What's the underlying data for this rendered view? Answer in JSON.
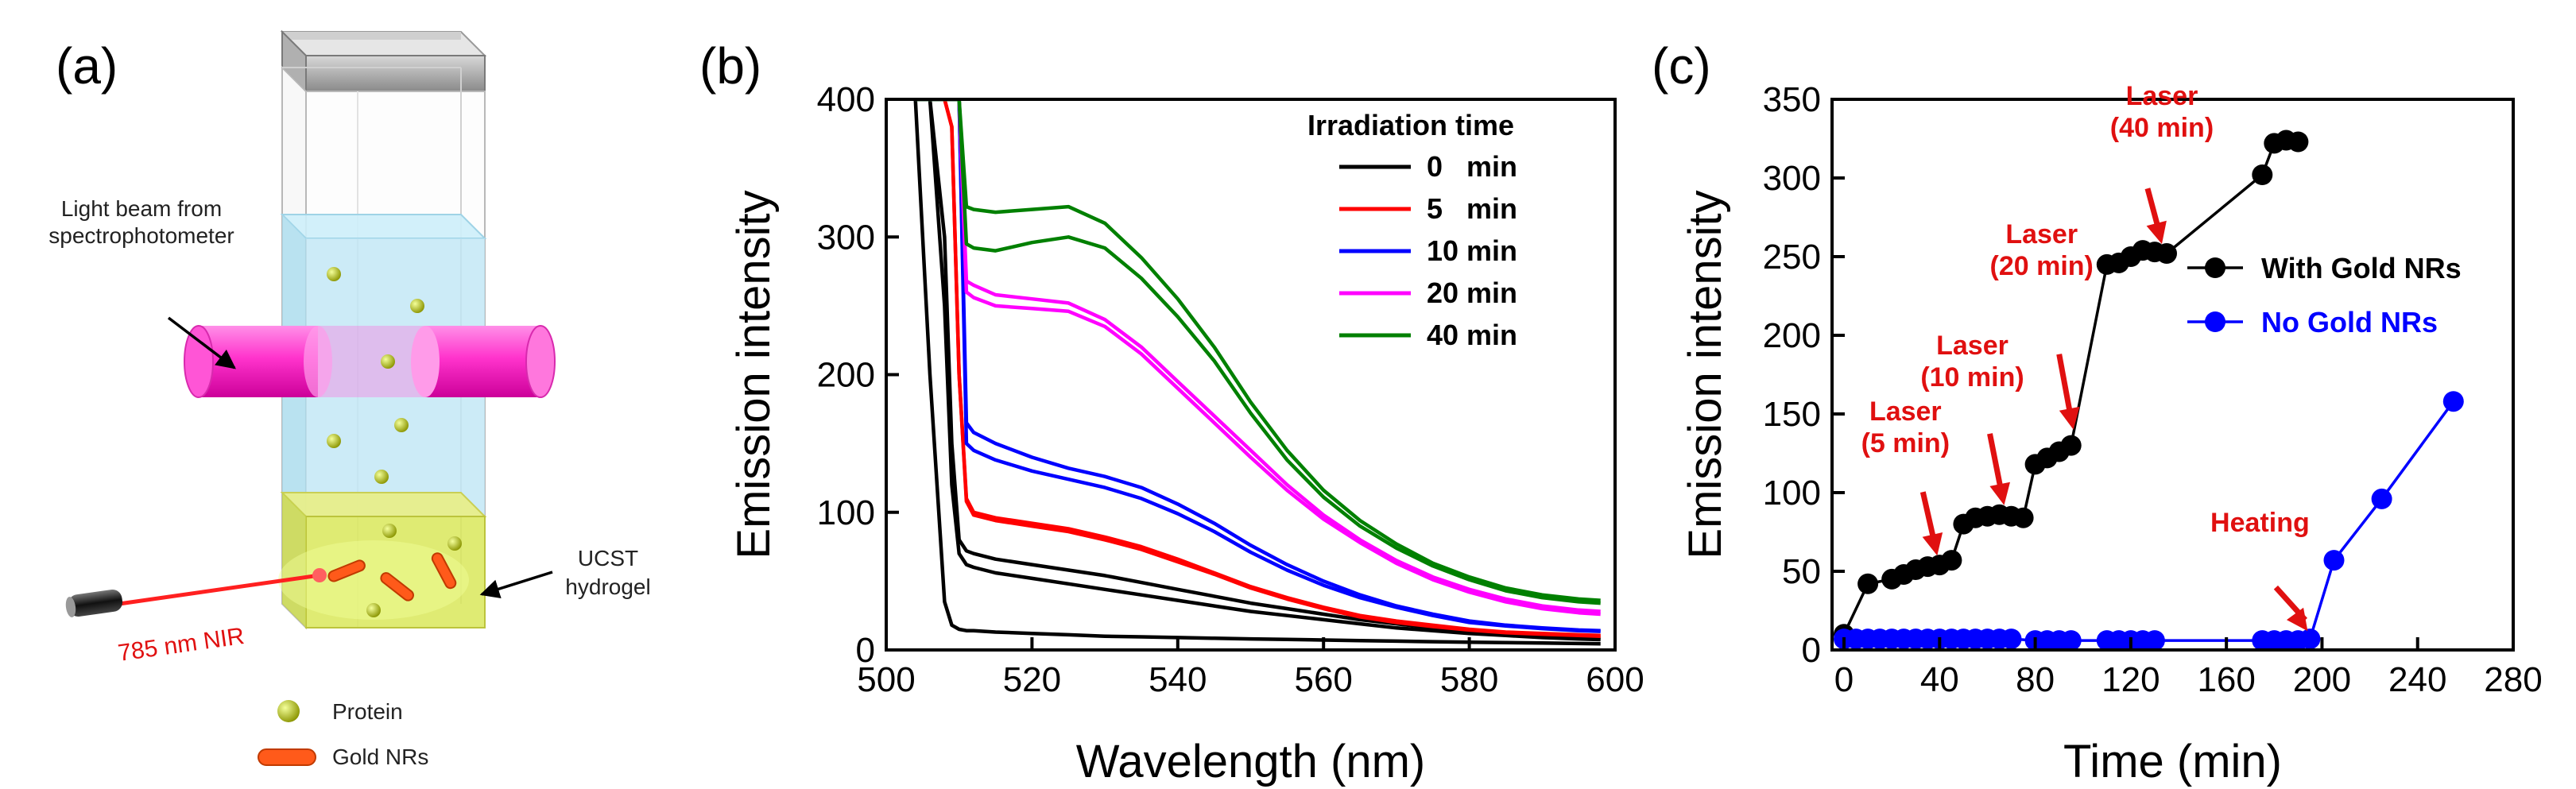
{
  "panels": {
    "a": {
      "label": "(a)",
      "light_beam_label_1": "Light beam from",
      "light_beam_label_2": "spectrophotometer",
      "laser_label": "785 nm NIR",
      "gel_label_1": "UCST",
      "gel_label_2": "hydrogel",
      "legend_protein": "Protein",
      "legend_gold": "Gold NRs",
      "colors": {
        "beam": "#ff33cc",
        "liquid": "#bfe6f5",
        "gel": "#d9e85a",
        "laser": "#ff2020",
        "protein": "#b8c400",
        "gold": "#ff5a1a"
      }
    },
    "b": {
      "label": "(b)"
    },
    "c": {
      "label": "(c)"
    }
  },
  "chart_data": [
    {
      "type": "line",
      "panel": "b",
      "title": "",
      "xlabel": "Wavelength (nm)",
      "ylabel": "Emission intensity",
      "xlim": [
        500,
        600
      ],
      "ylim": [
        0,
        400
      ],
      "xticks": [
        500,
        520,
        540,
        560,
        580,
        600
      ],
      "yticks": [
        0,
        100,
        200,
        300,
        400
      ],
      "legend_title": "Irradiation time",
      "legend_position": "top-right",
      "x": [
        504,
        506,
        508,
        509,
        510,
        511,
        512,
        515,
        520,
        525,
        530,
        535,
        540,
        545,
        550,
        555,
        560,
        565,
        570,
        575,
        580,
        585,
        590,
        595,
        598
      ],
      "series": [
        {
          "name": "0   min",
          "color": "#000000",
          "values": [
            400,
            200,
            35,
            18,
            15,
            14,
            14,
            13,
            12,
            11,
            10,
            9.5,
            9,
            8.5,
            8,
            7.6,
            7.2,
            6.8,
            6.4,
            6,
            5.6,
            5.3,
            5,
            4.7,
            4.5
          ]
        },
        {
          "name": "0   min",
          "color": "#000000",
          "values": [
            400,
            400,
            250,
            120,
            70,
            62,
            60,
            56,
            52,
            48,
            44,
            40,
            36,
            32,
            28,
            25,
            22,
            19,
            16,
            14,
            12,
            10.5,
            9,
            8,
            7.5
          ]
        },
        {
          "name": "0   min",
          "color": "#000000",
          "values": [
            400,
            400,
            300,
            150,
            80,
            72,
            70,
            66,
            62,
            58,
            54,
            49,
            44,
            39,
            34,
            30,
            26,
            22,
            19,
            16,
            13.5,
            11.5,
            10,
            9,
            8.5
          ]
        },
        {
          "name": "5   min",
          "color": "#ff0000",
          "values": [
            400,
            400,
            400,
            380,
            200,
            110,
            100,
            96,
            92,
            88,
            82,
            75,
            66,
            56,
            46,
            38,
            31,
            25,
            21,
            18,
            15,
            13,
            12,
            11,
            10.5
          ]
        },
        {
          "name": "5   min",
          "color": "#ff0000",
          "values": [
            400,
            400,
            400,
            380,
            200,
            108,
            98,
            94,
            90,
            86,
            80,
            73,
            64,
            55,
            45,
            37,
            30,
            24,
            20,
            17,
            14.5,
            12.5,
            11.5,
            10.5,
            10
          ]
        },
        {
          "name": "10 min",
          "color": "#0000ff",
          "values": [
            400,
            400,
            400,
            400,
            400,
            165,
            158,
            150,
            140,
            132,
            126,
            118,
            106,
            92,
            76,
            62,
            50,
            40,
            32,
            26,
            21,
            18,
            16,
            14.5,
            14
          ]
        },
        {
          "name": "10 min",
          "color": "#0000ff",
          "values": [
            400,
            400,
            400,
            400,
            400,
            150,
            145,
            138,
            130,
            124,
            118,
            110,
            99,
            86,
            71,
            58,
            47,
            38,
            31,
            25,
            20,
            17.5,
            15.5,
            14,
            13.5
          ]
        },
        {
          "name": "20 min",
          "color": "#ff00ff",
          "values": [
            400,
            400,
            400,
            400,
            400,
            268,
            265,
            258,
            255,
            252,
            240,
            220,
            195,
            170,
            145,
            120,
            98,
            80,
            65,
            53,
            44,
            37,
            32,
            29,
            28
          ]
        },
        {
          "name": "20 min",
          "color": "#ff00ff",
          "values": [
            400,
            400,
            400,
            400,
            400,
            260,
            256,
            250,
            248,
            246,
            235,
            215,
            190,
            165,
            140,
            116,
            95,
            78,
            63,
            51,
            42,
            35,
            30,
            27,
            26
          ]
        },
        {
          "name": "40 min",
          "color": "#008000",
          "values": [
            400,
            400,
            400,
            400,
            400,
            322,
            320,
            318,
            320,
            322,
            310,
            285,
            255,
            220,
            180,
            145,
            116,
            94,
            77,
            63,
            53,
            45,
            40,
            37,
            36
          ]
        },
        {
          "name": "40 min",
          "color": "#008000",
          "values": [
            400,
            400,
            400,
            400,
            400,
            295,
            292,
            290,
            296,
            300,
            292,
            270,
            242,
            210,
            172,
            138,
            111,
            90,
            74,
            61,
            51,
            43,
            38,
            35,
            34
          ]
        }
      ],
      "legend": [
        {
          "label": "0   min",
          "color": "#000000"
        },
        {
          "label": "5   min",
          "color": "#ff0000"
        },
        {
          "label": "10 min",
          "color": "#0000ff"
        },
        {
          "label": "20 min",
          "color": "#ff00ff"
        },
        {
          "label": "40 min",
          "color": "#008000"
        }
      ]
    },
    {
      "type": "line",
      "panel": "c",
      "title": "",
      "xlabel": "Time (min)",
      "ylabel": "Emission intensity",
      "xlim": [
        -5,
        280
      ],
      "ylim": [
        0,
        350
      ],
      "xticks": [
        0,
        40,
        80,
        120,
        160,
        200,
        240,
        280
      ],
      "yticks": [
        0,
        50,
        100,
        150,
        200,
        250,
        300,
        350
      ],
      "legend_position": "right",
      "series": [
        {
          "name": "With Gold NRs",
          "color": "#000000",
          "x": [
            0,
            10,
            20,
            25,
            30,
            35,
            40,
            45,
            50,
            55,
            60,
            65,
            70,
            75,
            80,
            85,
            90,
            95,
            110,
            115,
            120,
            125,
            130,
            135,
            175,
            180,
            185,
            190
          ],
          "y": [
            10,
            42,
            45,
            48,
            51,
            53,
            54,
            57,
            80,
            84,
            85,
            86,
            85,
            84,
            118,
            122,
            126,
            130,
            245,
            246,
            250,
            254,
            253,
            252,
            302,
            322,
            324,
            323
          ]
        },
        {
          "name": "No Gold NRs",
          "color": "#0000ff",
          "x": [
            0,
            5,
            10,
            15,
            20,
            25,
            30,
            35,
            40,
            45,
            50,
            55,
            60,
            65,
            70,
            80,
            85,
            90,
            95,
            110,
            115,
            120,
            125,
            130,
            175,
            180,
            185,
            190,
            195,
            205,
            225,
            255
          ],
          "y": [
            7,
            7,
            7,
            7,
            7,
            7,
            7,
            7,
            7,
            7,
            7,
            7,
            7,
            7,
            7,
            6,
            6,
            6,
            6,
            6,
            6,
            6,
            6,
            6,
            6,
            6,
            6,
            6,
            7,
            57,
            96,
            158
          ]
        }
      ],
      "annotations": [
        {
          "text": "Laser (5 min)",
          "line1": "Laser",
          "line2": "(5 min)",
          "x": 39,
          "y": 60
        },
        {
          "text": "Laser (10 min)",
          "line1": "Laser",
          "line2": "(10 min)",
          "x": 67,
          "y": 92
        },
        {
          "text": "Laser (20 min)",
          "line1": "Laser",
          "line2": "(20 min)",
          "x": 96,
          "y": 140
        },
        {
          "text": "Laser (40 min)",
          "line1": "Laser",
          "line2": "(40 min)",
          "x": 133,
          "y": 258
        },
        {
          "text": "Heating",
          "line1": "Heating",
          "line2": "",
          "x": 194,
          "y": 12
        }
      ]
    }
  ]
}
